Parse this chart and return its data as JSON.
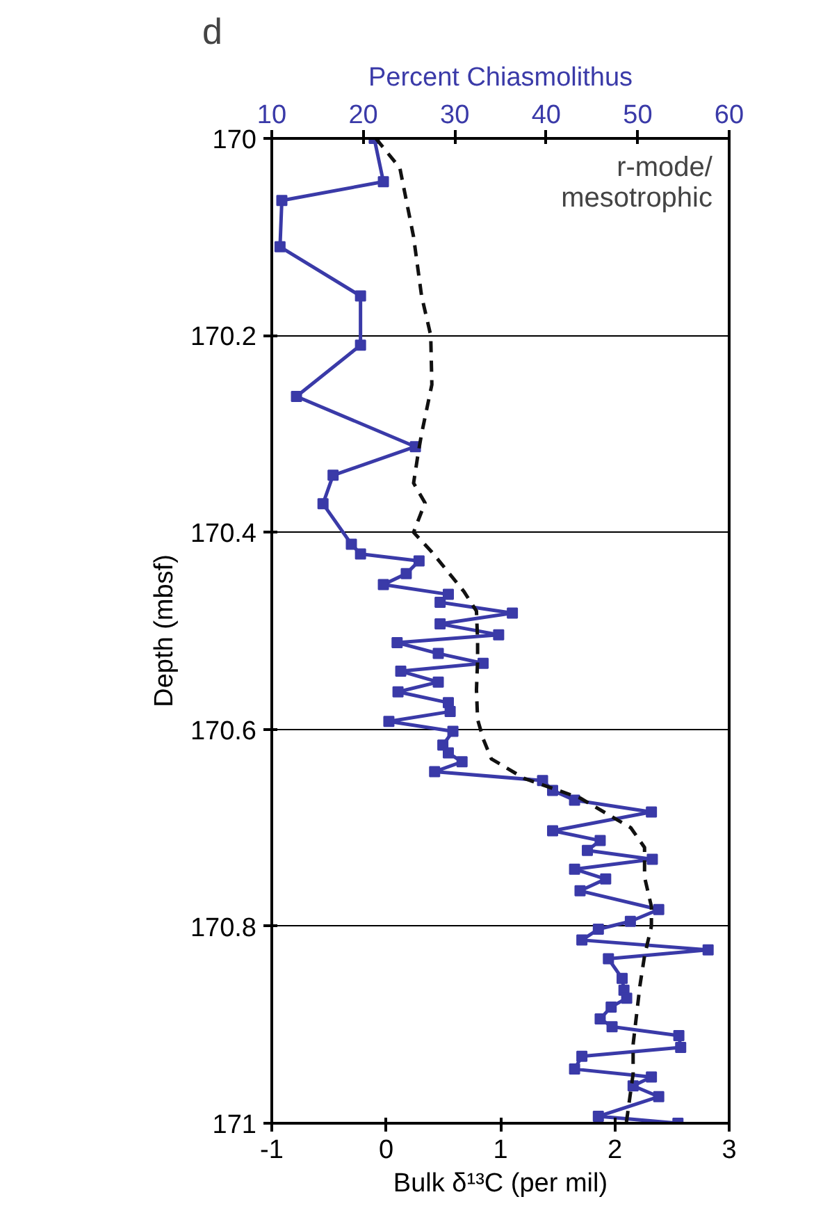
{
  "chart_data": {
    "type": "line",
    "title": "d",
    "xlabel": "Bulk δ¹³C (per mil)",
    "x2label": "Percent Chiasmolithus",
    "ylabel": "Depth (mbsf)",
    "annotations": [
      "r-mode/\nmesotrophic"
    ],
    "xlim": [
      -1,
      3
    ],
    "xticks": [
      -1,
      0,
      1,
      2,
      3
    ],
    "x2lim": [
      10,
      60
    ],
    "x2ticks": [
      10,
      20,
      30,
      40,
      50,
      60
    ],
    "ylim": [
      171,
      170
    ],
    "yticks": [
      170,
      170.2,
      170.4,
      170.6,
      170.8,
      171
    ],
    "grid": "y",
    "series": [
      {
        "axis": "x2",
        "color": "#3a3aa8",
        "marker": "square",
        "line_style": "solid",
        "values": [
          170.0,
          170.044,
          170.063,
          170.11,
          170.16,
          170.21,
          170.262,
          170.313,
          170.342,
          170.371,
          170.412,
          170.422,
          170.429,
          170.442,
          170.453,
          170.463,
          170.471,
          170.482,
          170.493,
          170.504,
          170.512,
          170.523,
          170.533,
          170.541,
          170.552,
          170.562,
          170.573,
          170.582,
          170.592,
          170.602,
          170.616,
          170.624,
          170.633,
          170.643,
          170.652,
          170.662,
          170.672,
          170.684,
          170.703,
          170.713,
          170.723,
          170.732,
          170.742,
          170.752,
          170.764,
          170.783,
          170.795,
          170.803,
          170.814,
          170.824,
          170.833,
          170.853,
          170.865,
          170.873,
          170.882,
          170.894,
          170.902,
          170.911,
          170.923,
          170.932,
          170.945,
          170.953,
          170.962,
          170.973,
          170.993,
          171.0
        ],
        "x": [
          21.2,
          22.2,
          11.1,
          10.9,
          19.7,
          19.7,
          12.7,
          25.7,
          16.7,
          15.6,
          18.7,
          19.7,
          26.1,
          24.7,
          22.2,
          29.3,
          28.4,
          36.3,
          28.4,
          34.8,
          23.7,
          28.2,
          33.1,
          24.1,
          28.2,
          23.8,
          29.3,
          29.5,
          22.8,
          29.8,
          28.7,
          29.3,
          30.8,
          27.8,
          39.6,
          40.7,
          43.1,
          51.5,
          40.7,
          45.9,
          44.5,
          51.6,
          43.1,
          46.5,
          43.7,
          52.3,
          49.2,
          45.7,
          43.9,
          57.7,
          46.8,
          48.3,
          48.5,
          48.8,
          47.1,
          45.9,
          47.2,
          54.5,
          54.7,
          43.9,
          43.1,
          51.5,
          49.5,
          52.3,
          45.7,
          54.4
        ]
      },
      {
        "color": "#111111",
        "marker": "none",
        "line_style": "dashed",
        "values": [
          170.0,
          170.03,
          170.1,
          170.16,
          170.2,
          170.25,
          170.3,
          170.32,
          170.35,
          170.37,
          170.4,
          170.42,
          170.44,
          170.46,
          170.48,
          170.51,
          170.53,
          170.56,
          170.59,
          170.61,
          170.63,
          170.65,
          170.67,
          170.7,
          170.72,
          170.75,
          170.78,
          170.8,
          170.83,
          170.86,
          170.89,
          170.92,
          170.95,
          171.0
        ],
        "x": [
          -0.09,
          0.12,
          0.24,
          0.31,
          0.39,
          0.4,
          0.31,
          0.28,
          0.24,
          0.34,
          0.24,
          0.4,
          0.54,
          0.68,
          0.79,
          0.8,
          0.8,
          0.79,
          0.8,
          0.85,
          0.92,
          1.21,
          1.7,
          2.14,
          2.26,
          2.26,
          2.32,
          2.32,
          2.26,
          2.22,
          2.19,
          2.16,
          2.16,
          2.1
        ]
      }
    ]
  }
}
